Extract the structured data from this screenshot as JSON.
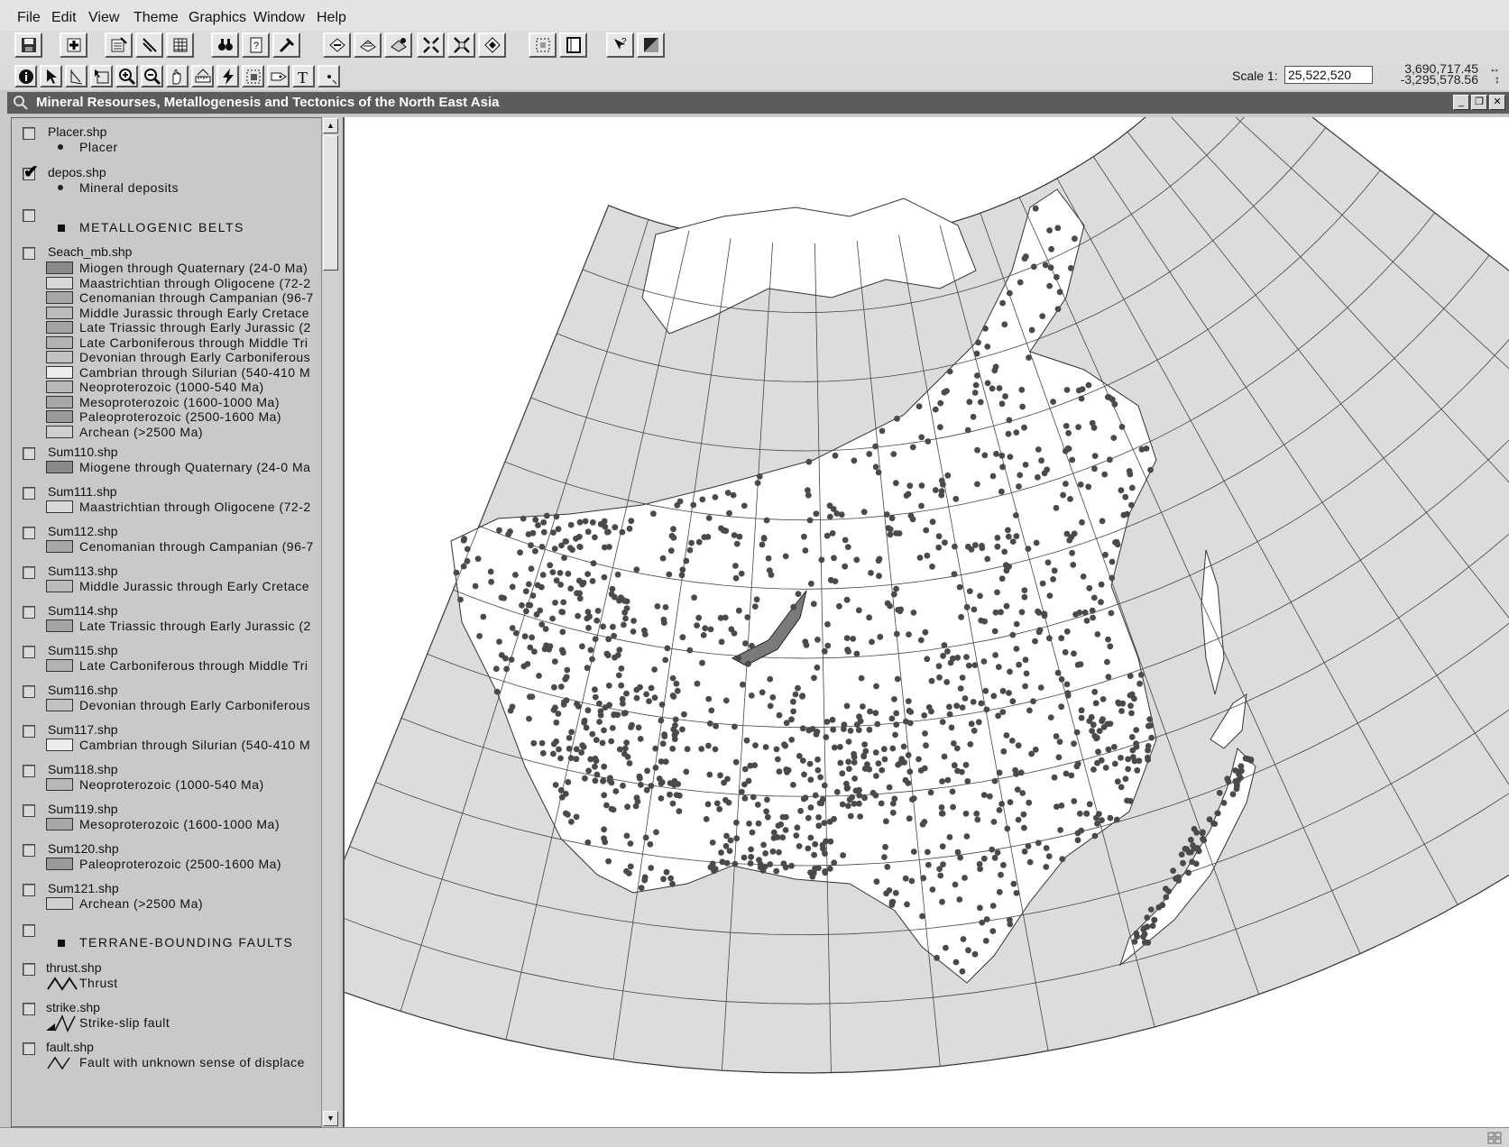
{
  "menu": [
    "File",
    "Edit",
    "View",
    "Theme",
    "Graphics",
    "Window",
    "Help"
  ],
  "toolbar1_icons": [
    "save-icon",
    "add-theme-icon",
    "theme-properties-icon",
    "edit-legend-icon",
    "open-table-icon",
    "find-icon",
    "query-builder-icon",
    "locate-address-icon",
    "zoom-to-full-extent-icon",
    "zoom-to-themes-icon",
    "zoom-to-selected-icon",
    "zoom-in-fixed-icon",
    "zoom-out-fixed-icon",
    "zoom-previous-icon",
    "select-none-icon",
    "layout-icon",
    "help-icon",
    "shade-icon"
  ],
  "toolbar2_icons": [
    "identify-icon",
    "pointer-icon",
    "vertex-edit-icon",
    "select-feature-icon",
    "zoom-in-icon",
    "zoom-out-icon",
    "pan-icon",
    "measure-icon",
    "hotlink-icon",
    "area-of-interest-icon",
    "label-icon",
    "text-icon",
    "draw-point-icon"
  ],
  "scale": {
    "label": "Scale 1:",
    "value": "25,522,520"
  },
  "coords": {
    "x": "3,690,717.45",
    "y": "-3,295,578.56"
  },
  "window": {
    "title": "Mineral Resourses, Metallogenesis and Tectonics of the North East Asia"
  },
  "legend": {
    "placer": {
      "name": "Placer.shp",
      "symbol": "Placer"
    },
    "depos": {
      "name": "depos.shp",
      "symbol": "Mineral deposits"
    },
    "belts_header": "METALLOGENIC BELTS",
    "seach": {
      "name": "Seach_mb.shp",
      "classes": [
        "Miogen through Quaternary (24-0 Ma)",
        "Maastrichtian through Oligocene (72-2",
        "Cenomanian through Campanian (96-7",
        "Middle Jurassic through Early Cretace",
        "Late Triassic through Early Jurassic (2",
        "Late Carboniferous through Middle Tri",
        "Devonian through Early Carboniferous",
        "Cambrian through Silurian (540-410 M",
        "Neoproterozoic (1000-540 Ma)",
        "Mesoproterozoic (1600-1000 Ma)",
        "Paleoproterozoic (2500-1600 Ma)",
        "Archean (>2500 Ma)"
      ]
    },
    "sums": [
      {
        "name": "Sum110.shp",
        "label": "Miogene through Quaternary (24-0 Ma"
      },
      {
        "name": "Sum111.shp",
        "label": "Maastrichtian through Oligocene (72-2"
      },
      {
        "name": "Sum112.shp",
        "label": "Cenomanian through Campanian (96-7"
      },
      {
        "name": "Sum113.shp",
        "label": "Middle Jurassic through Early Cretace"
      },
      {
        "name": "Sum114.shp",
        "label": "Late Triassic through Early Jurassic (2"
      },
      {
        "name": "Sum115.shp",
        "label": "Late Carboniferous through Middle Tri"
      },
      {
        "name": "Sum116.shp",
        "label": "Devonian through Early Carboniferous"
      },
      {
        "name": "Sum117.shp",
        "label": "Cambrian through Silurian (540-410 M"
      },
      {
        "name": "Sum118.shp",
        "label": "Neoproterozoic (1000-540 Ma)"
      },
      {
        "name": "Sum119.shp",
        "label": "Mesoproterozoic (1600-1000 Ma)"
      },
      {
        "name": "Sum120.shp",
        "label": "Paleoproterozoic (2500-1600 Ma)"
      },
      {
        "name": "Sum121.shp",
        "label": "Archean (>2500 Ma)"
      }
    ],
    "faults_header": "TERRANE-BOUNDING FAULTS",
    "thrust": {
      "name": "thrust.shp",
      "symbol": "Thrust"
    },
    "strike": {
      "name": "strike.shp",
      "symbol": "Strike-slip fault"
    },
    "fault": {
      "name": "fault.shp",
      "symbol": "Fault with unknown sense of displace"
    }
  },
  "colors": {
    "titlebar": "#5c5c5c",
    "land": "#ffffff",
    "sea": "#dcdcdc",
    "deposit": "#4a4a4a",
    "lake": "#7a7a7a"
  }
}
